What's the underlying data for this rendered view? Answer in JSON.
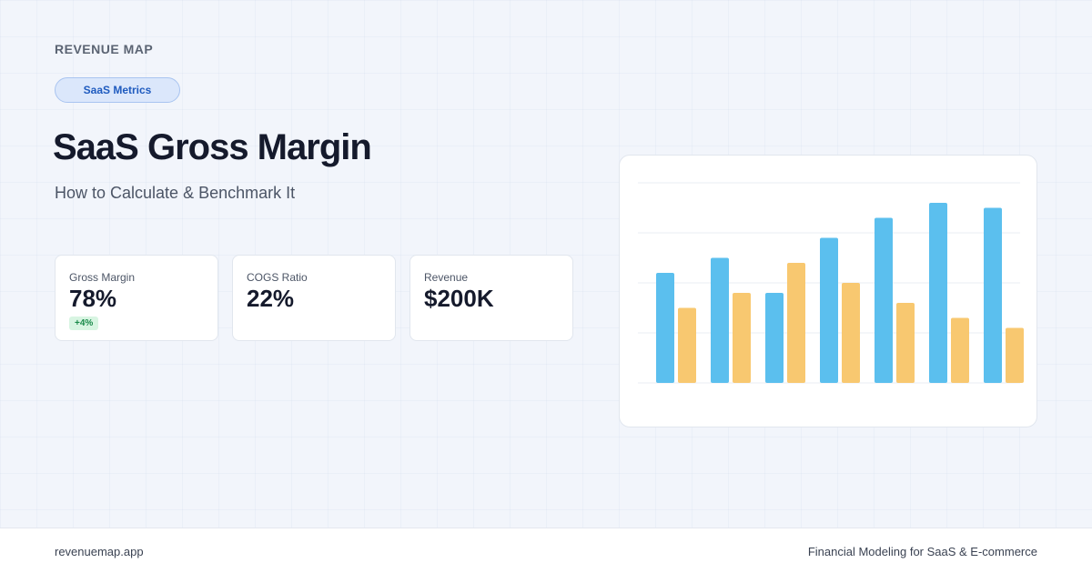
{
  "header": {
    "brand": "REVENUE MAP",
    "tag": "SaaS Metrics",
    "title": "SaaS Gross Margin",
    "subtitle": "How to Calculate & Benchmark It"
  },
  "metrics": [
    {
      "label": "Gross Margin",
      "value": "78%",
      "badge": "+4%"
    },
    {
      "label": "COGS Ratio",
      "value": "22%"
    },
    {
      "label": "Revenue",
      "value": "$200K"
    }
  ],
  "footer": {
    "site": "revenuemap.app",
    "tagline": "Financial Modeling for SaaS & E-commerce"
  },
  "chart_data": {
    "type": "bar",
    "categories": [
      null,
      null,
      null,
      null,
      null,
      null,
      null
    ],
    "series": [
      {
        "color": "#5bbfee",
        "values": [
          2.2,
          2.5,
          1.8,
          2.9,
          3.3,
          3.6,
          3.5
        ]
      },
      {
        "color": "#f8c870",
        "values": [
          1.5,
          1.8,
          2.4,
          2.0,
          1.6,
          1.3,
          1.1
        ]
      }
    ],
    "ylim": [
      0,
      4
    ],
    "yticks": [
      0,
      1,
      2,
      3,
      4
    ],
    "grid": true
  }
}
